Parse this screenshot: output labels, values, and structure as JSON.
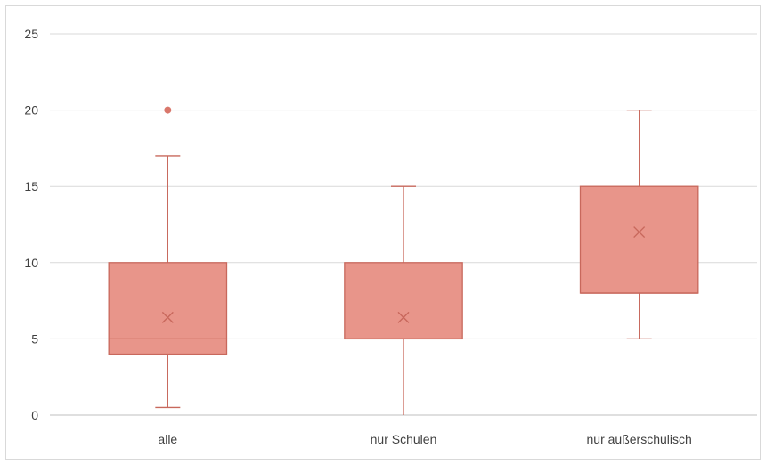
{
  "chart_data": {
    "type": "boxplot",
    "title": "",
    "xlabel": "",
    "ylabel": "",
    "ylim": [
      0,
      25
    ],
    "y_ticks": [
      0,
      5,
      10,
      15,
      20,
      25
    ],
    "y_tick_labels": [
      "0",
      "5",
      "10",
      "15",
      "20",
      "25"
    ],
    "grid": true,
    "legend": "none",
    "categories": [
      "alle",
      "nur Schulen",
      "nur außerschulisch"
    ],
    "boxes": [
      {
        "category": "alle",
        "whisker_low": 0.5,
        "q1": 4,
        "median": 5,
        "q3": 10,
        "whisker_high": 17,
        "mean": 6.4,
        "outliers": [
          20
        ]
      },
      {
        "category": "nur Schulen",
        "whisker_low": 0,
        "q1": 5,
        "median": 5,
        "q3": 10,
        "whisker_high": 15,
        "mean": 6.4,
        "outliers": []
      },
      {
        "category": "nur außerschulisch",
        "whisker_low": 5,
        "q1": 8,
        "median": 8,
        "q3": 15,
        "whisker_high": 20,
        "mean": 12,
        "outliers": []
      }
    ],
    "colors": {
      "box_fill": "#e8958a",
      "box_stroke": "#c8685c",
      "whisker": "#c8685c",
      "mean_marker": "#c8685c",
      "outlier": "#d9776b",
      "grid": "#d9d9d9",
      "axis": "#bfbfbf",
      "text": "#404040"
    }
  }
}
